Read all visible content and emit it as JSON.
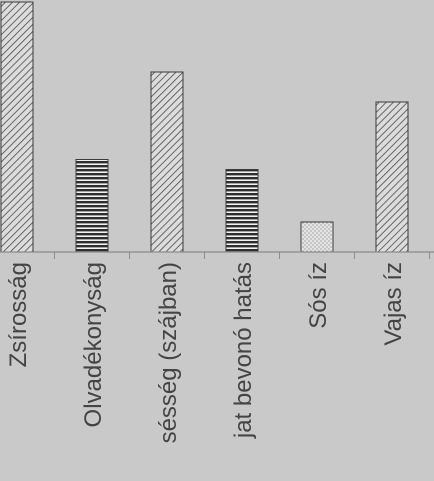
{
  "chart_data": {
    "type": "bar",
    "categories": [
      "Zsírosság",
      "Olvadékonyság",
      "sésség (szájban)",
      "jat bevonó hatás",
      "Sós íz",
      "Vajas íz"
    ],
    "values": [
      100,
      37,
      72,
      33,
      12,
      60
    ],
    "patterns": [
      "diagonal",
      "horizontal",
      "diagonal",
      "horizontal",
      "dotted",
      "diagonal"
    ],
    "ylim": [
      0,
      100
    ],
    "grid": false,
    "xlabel": "",
    "ylabel": "",
    "colors": {
      "background": "#c9c9c9",
      "bar_stroke": "#3a3a3a",
      "hatch": "#4a4a4a",
      "horizontal_fill": "#2e2e2e",
      "dotted_fill": "#e4e4e4",
      "axis": "#8c8c8c",
      "label": "#444444"
    }
  }
}
